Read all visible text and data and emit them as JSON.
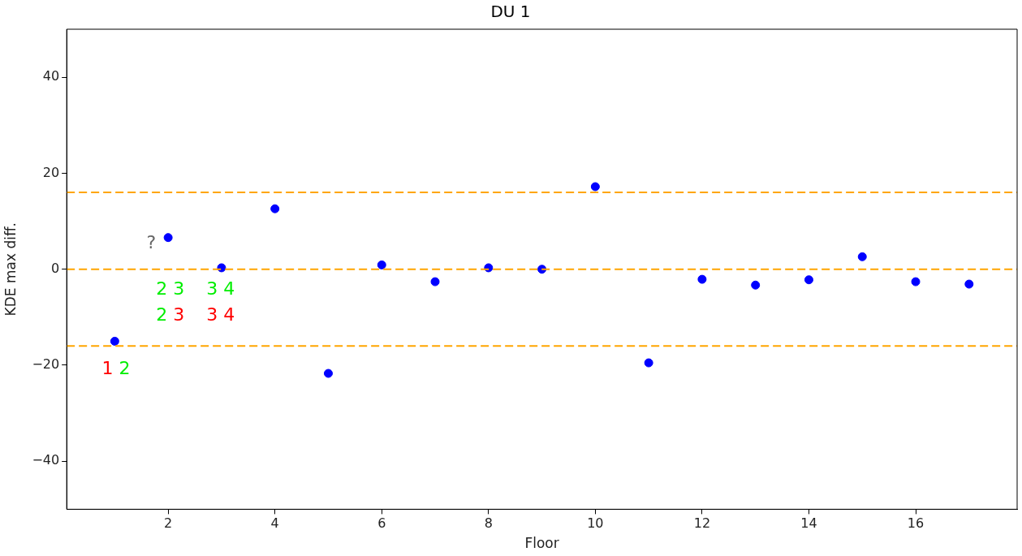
{
  "chart_data": {
    "type": "scatter",
    "title": "DU 1",
    "xlabel": "Floor",
    "ylabel": "KDE max diff.",
    "x": [
      1,
      2,
      3,
      4,
      5,
      6,
      7,
      8,
      9,
      10,
      11,
      12,
      13,
      14,
      15,
      16,
      17
    ],
    "series": [
      {
        "color": "#0000ff",
        "values": [
          -15.0,
          6.6,
          0.3,
          12.6,
          -21.7,
          0.9,
          -2.6,
          0.3,
          0,
          17.2,
          -19.5,
          -2.1,
          -3.3,
          -2.2,
          2.6,
          -2.6,
          -3.1
        ]
      }
    ],
    "xlim": [
      0.1,
      17.9
    ],
    "xticks": [
      2,
      4,
      6,
      8,
      10,
      12,
      14,
      16
    ],
    "ylim": [
      -50,
      50
    ],
    "yticks": [
      -40,
      -20,
      0,
      20,
      40
    ],
    "grid": false,
    "legend": false,
    "marker": "circle",
    "ref_lines": [
      {
        "axis": "y",
        "value": 16.0,
        "color": "#ffa500",
        "line_style": "dashed"
      },
      {
        "axis": "y",
        "value": 0,
        "color": "#ffa500",
        "line_style": "dashed"
      },
      {
        "axis": "y",
        "value": -16.0,
        "color": "#ffa500",
        "line_style": "dashed"
      }
    ],
    "annotations": [
      "?",
      "1 2",
      "2 3",
      "2 3",
      "3 4",
      "3 4"
    ]
  }
}
